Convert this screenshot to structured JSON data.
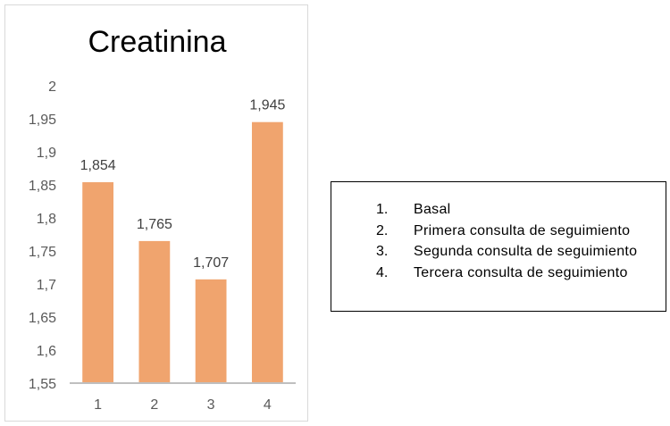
{
  "chart_data": {
    "type": "bar",
    "title": "Creatinina",
    "xlabel": "",
    "ylabel": "",
    "categories": [
      "1",
      "2",
      "3",
      "4"
    ],
    "series": [
      {
        "values": [
          1.854,
          1.765,
          1.707,
          1.945
        ],
        "data_labels": [
          "1,854",
          "1,765",
          "1,707",
          "1,945"
        ]
      }
    ],
    "ylim": [
      1.55,
      2
    ],
    "y_ticks": [
      1.55,
      1.6,
      1.65,
      1.7,
      1.75,
      1.8,
      1.85,
      1.9,
      1.95,
      2
    ],
    "y_tick_labels": [
      "1,55",
      "1,6",
      "1,65",
      "1,7",
      "1,75",
      "1,8",
      "1,85",
      "1,9",
      "1,95",
      "2"
    ],
    "grid": false,
    "bar_color": "#f0a46e",
    "axis_color": "#bfbfbf"
  },
  "legend": {
    "items": [
      {
        "num": "1.",
        "text": "Basal"
      },
      {
        "num": "2.",
        "text": "Primera consulta de seguimiento"
      },
      {
        "num": "3.",
        "text": "Segunda consulta de seguimiento"
      },
      {
        "num": "4.",
        "text": "Tercera consulta de seguimiento"
      }
    ]
  }
}
